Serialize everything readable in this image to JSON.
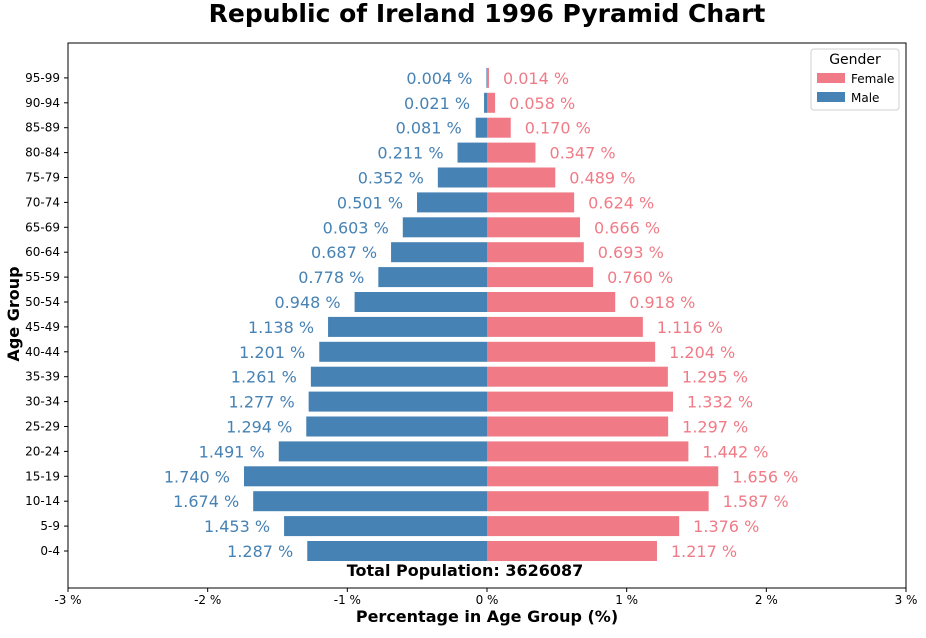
{
  "chart_data": {
    "type": "bar",
    "orientation": "horizontal",
    "title": "Republic of Ireland 1996 Pyramid Chart",
    "xlabel": "Percentage in Age Group (%)",
    "ylabel": "Age Group",
    "xlim": [
      -3,
      3
    ],
    "xticks": [
      -3,
      -2,
      -1,
      0,
      1,
      2,
      3
    ],
    "xtick_labels": [
      "-3 %",
      "-2 %",
      "-1 %",
      "0 %",
      "1 %",
      "2 %",
      "3 %"
    ],
    "categories": [
      "0-4",
      "5-9",
      "10-14",
      "15-19",
      "20-24",
      "25-29",
      "30-34",
      "35-39",
      "40-44",
      "45-49",
      "50-54",
      "55-59",
      "60-64",
      "65-69",
      "70-74",
      "75-79",
      "80-84",
      "85-89",
      "90-94",
      "95-99"
    ],
    "series": [
      {
        "name": "Male",
        "color": "#4682b4",
        "side": "left",
        "values": [
          1.287,
          1.453,
          1.674,
          1.74,
          1.491,
          1.294,
          1.277,
          1.261,
          1.201,
          1.138,
          0.948,
          0.778,
          0.687,
          0.603,
          0.501,
          0.352,
          0.211,
          0.081,
          0.021,
          0.004
        ],
        "labels": [
          "1.287 %",
          "1.453 %",
          "1.674 %",
          "1.740 %",
          "1.491 %",
          "1.294 %",
          "1.277 %",
          "1.261 %",
          "1.201 %",
          "1.138 %",
          "0.948 %",
          "0.778 %",
          "0.687 %",
          "0.603 %",
          "0.501 %",
          "0.352 %",
          "0.211 %",
          "0.081 %",
          "0.021 %",
          "0.004 %"
        ]
      },
      {
        "name": "Female",
        "color": "#f07b87",
        "side": "right",
        "values": [
          1.217,
          1.376,
          1.587,
          1.656,
          1.442,
          1.297,
          1.332,
          1.295,
          1.204,
          1.116,
          0.918,
          0.76,
          0.693,
          0.666,
          0.624,
          0.489,
          0.347,
          0.17,
          0.058,
          0.014
        ],
        "labels": [
          "1.217 %",
          "1.376 %",
          "1.587 %",
          "1.656 %",
          "1.442 %",
          "1.297 %",
          "1.332 %",
          "1.295 %",
          "1.204 %",
          "1.116 %",
          "0.918 %",
          "0.760 %",
          "0.693 %",
          "0.666 %",
          "0.624 %",
          "0.489 %",
          "0.347 %",
          "0.170 %",
          "0.058 %",
          "0.014 %"
        ]
      }
    ],
    "legend": {
      "title": "Gender",
      "placement": "top-right",
      "entries": [
        "Female",
        "Male"
      ]
    },
    "annotation": "Total Population: 3626087",
    "grid": false
  }
}
